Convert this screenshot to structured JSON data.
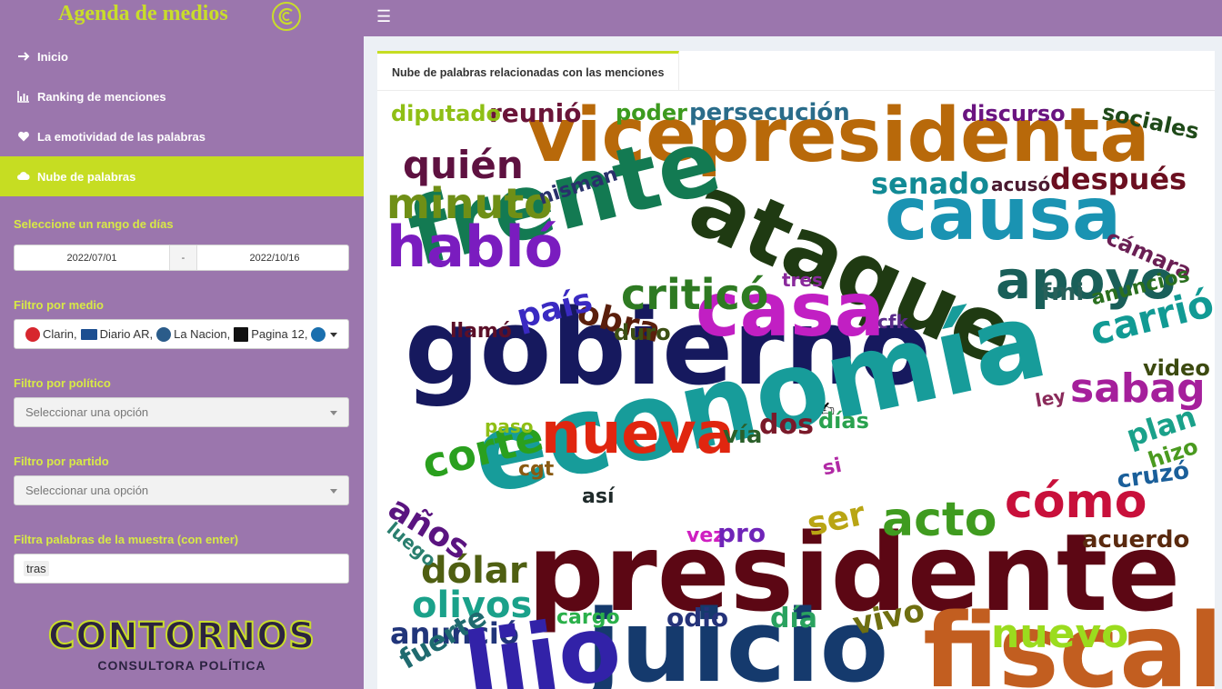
{
  "app": {
    "title": "Agenda de medios"
  },
  "nav": [
    {
      "label": "Inicio",
      "icon": "arrow-right-icon"
    },
    {
      "label": "Ranking de menciones",
      "icon": "bar-chart-icon"
    },
    {
      "label": "La emotividad de las palabras",
      "icon": "heart-icon"
    },
    {
      "label": "Nube de palabras",
      "icon": "cloud-icon",
      "active": true
    }
  ],
  "filters": {
    "date_label": "Seleccione un rango de días",
    "date_start": "2022/07/01",
    "date_sep": "-",
    "date_end": "2022/10/16",
    "medio_label": "Filtro por medio",
    "medios": [
      {
        "name": "Clarin,",
        "color": "#d7262e"
      },
      {
        "name": "Diario AR,",
        "color": "#1d4f91"
      },
      {
        "name": "La Nacion,",
        "color": "#2b5c8a"
      },
      {
        "name": "Pagina 12,",
        "color": "#111111"
      }
    ],
    "politico_label": "Filtro por político",
    "politico_placeholder": "Seleccionar una opción",
    "partido_label": "Filtro por partido",
    "partido_placeholder": "Seleccionar una opción",
    "palabras_label": "Filtra palabras de la muestra (con enter)",
    "palabras_tag": "tras"
  },
  "footer_logo": {
    "name": "CONTORNOS",
    "tagline": "CONSULTORA POLÍTICA"
  },
  "tab": {
    "label": "Nube de palabras relacionadas con las menciones"
  },
  "wordcloud": [
    {
      "text": "vicepresidenta",
      "color": "#b8690a"
    },
    {
      "text": "ataque",
      "color": "#1f3a12"
    },
    {
      "text": "frente",
      "color": "#137a52"
    },
    {
      "text": "causa",
      "color": "#1a93b2"
    },
    {
      "text": "gobierno",
      "color": "#16195e"
    },
    {
      "text": "casa",
      "color": "#c11fc3"
    },
    {
      "text": "economía",
      "color": "#179c9a"
    },
    {
      "text": "presidente",
      "color": "#5c0714"
    },
    {
      "text": "juicio",
      "color": "#153a6d"
    },
    {
      "text": "fiscal",
      "color": "#c25e20"
    },
    {
      "text": "nueva",
      "color": "#e0260f"
    },
    {
      "text": "apoyo",
      "color": "#195f59"
    },
    {
      "text": "habló",
      "color": "#7a1cbf"
    },
    {
      "text": "minuto",
      "color": "#6f8f16"
    },
    {
      "text": "criticó",
      "color": "#2e7a22"
    },
    {
      "text": "quién",
      "color": "#5e1140"
    },
    {
      "text": "cómo",
      "color": "#c8103b"
    },
    {
      "text": "acto",
      "color": "#3f9b1f"
    },
    {
      "text": "corte",
      "color": "#2aa01e"
    },
    {
      "text": "sabag",
      "color": "#a51f9b"
    },
    {
      "text": "carrió",
      "color": "#119a94"
    },
    {
      "text": "nuevo",
      "color": "#9bdc1e"
    },
    {
      "text": "olivos",
      "color": "#1aa18a"
    },
    {
      "text": "dólar",
      "color": "#4f5f12"
    },
    {
      "text": "senado",
      "color": "#128a95"
    },
    {
      "text": "después",
      "color": "#6b0f20"
    },
    {
      "text": "obra",
      "color": "#5a1f0c"
    },
    {
      "text": "país",
      "color": "#3a2ac2"
    },
    {
      "text": "reunió",
      "color": "#6a1438"
    },
    {
      "text": "diputado",
      "color": "#8fbf15"
    },
    {
      "text": "poder",
      "color": "#3c9a1e"
    },
    {
      "text": "persecución",
      "color": "#2a6c8a"
    },
    {
      "text": "discurso",
      "color": "#6a1480"
    },
    {
      "text": "sociales",
      "color": "#1f4a19"
    },
    {
      "text": "cámara",
      "color": "#6a1f54"
    },
    {
      "text": "nisman",
      "color": "#29306b"
    },
    {
      "text": "acusó",
      "color": "#4a1a30"
    },
    {
      "text": "tres",
      "color": "#8a2a9c"
    },
    {
      "text": "fmi",
      "color": "#27605a"
    },
    {
      "text": "anuncios",
      "color": "#2a6f1f"
    },
    {
      "text": "llamó",
      "color": "#5a0f28"
    },
    {
      "text": "duro",
      "color": "#3c4f14"
    },
    {
      "text": "cfk",
      "color": "#5a2a8a"
    },
    {
      "text": "video",
      "color": "#3c4a10"
    },
    {
      "text": "ley",
      "color": "#8a2a5a"
    },
    {
      "text": "dos",
      "color": "#7a1a2a"
    },
    {
      "text": "días",
      "color": "#2aa24f"
    },
    {
      "text": "vía",
      "color": "#2b5f2a"
    },
    {
      "text": "paso",
      "color": "#8fbf15"
    },
    {
      "text": "plan",
      "color": "#1aa18a"
    },
    {
      "text": "hizo",
      "color": "#4a9a1f"
    },
    {
      "text": "cgt",
      "color": "#8a5a12"
    },
    {
      "text": "si",
      "color": "#b12aa5"
    },
    {
      "text": "cruzó",
      "color": "#1a5f9a"
    },
    {
      "text": "así",
      "color": "#1f2a2a"
    },
    {
      "text": "años",
      "color": "#5a1480"
    },
    {
      "text": "luego",
      "color": "#2a7f6f"
    },
    {
      "text": "ser",
      "color": "#b9a514"
    },
    {
      "text": "vez",
      "color": "#cf1fc1"
    },
    {
      "text": "pro",
      "color": "#6f24b8"
    },
    {
      "text": "acuerdo",
      "color": "#5a2a0f"
    },
    {
      "text": "cargo",
      "color": "#2ab04a"
    },
    {
      "text": "odio",
      "color": "#25337a"
    },
    {
      "text": "día",
      "color": "#2aa25f"
    },
    {
      "text": "vivo",
      "color": "#6f6f10"
    },
    {
      "text": "anunció",
      "color": "#21357a"
    },
    {
      "text": "fuerte",
      "color": "#1f6a6f"
    },
    {
      "text": "lijo",
      "color": "#3222a8"
    }
  ]
}
